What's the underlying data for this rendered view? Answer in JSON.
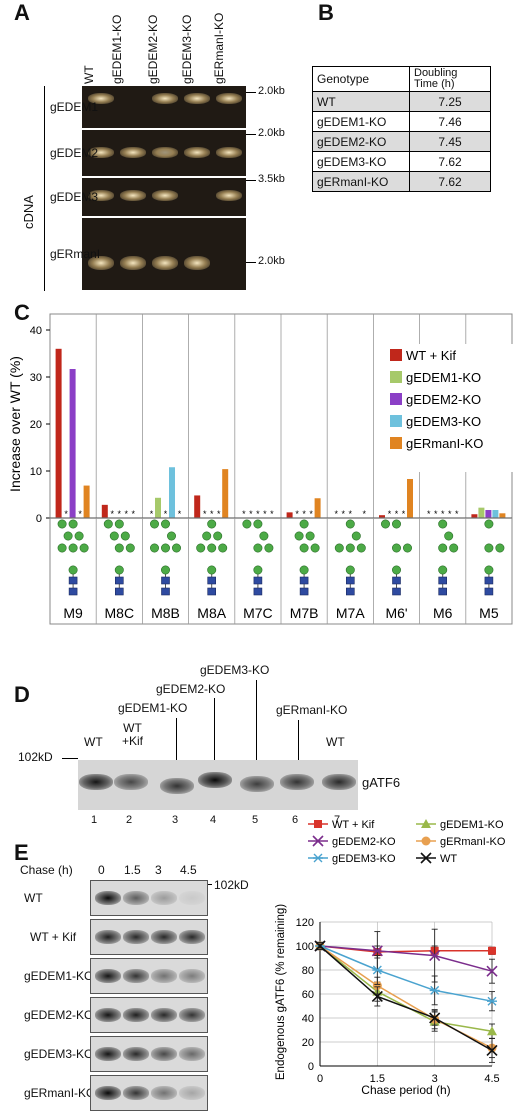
{
  "panelA": {
    "label": "A",
    "lanes": [
      "WT",
      "gEDEM1-KO",
      "gEDEM2-KO",
      "gEDEM3-KO",
      "gERmanI-KO"
    ],
    "side_label": "cDNA",
    "rows": [
      {
        "name": "gEDEM1",
        "marker": "2.0kb"
      },
      {
        "name": "gEDEM2",
        "marker": "2.0kb"
      },
      {
        "name": "gEDEM3",
        "marker": "3.5kb"
      },
      {
        "name": "gERmanI",
        "marker": "2.0kb"
      }
    ]
  },
  "panelB": {
    "label": "B",
    "header_genotype": "Genotype",
    "header_time_line1": "Doubling",
    "header_time_line2": "Time (h)",
    "rows": [
      {
        "genotype": "WT",
        "time": "7.25"
      },
      {
        "genotype": "gEDEM1-KO",
        "time": "7.46"
      },
      {
        "genotype": "gEDEM2-KO",
        "time": "7.45"
      },
      {
        "genotype": "gEDEM3-KO",
        "time": "7.62"
      },
      {
        "genotype": "gERmanI-KO",
        "time": "7.62"
      }
    ]
  },
  "panelC": {
    "label": "C",
    "star": "*",
    "colors": {
      "WT + Kif": "#c0271b",
      "gEDEM1-KO": "#a6c96a",
      "gEDEM2-KO": "#8b3fc6",
      "gEDEM3-KO": "#6ec1dd",
      "gERmanI-KO": "#e08421"
    }
  },
  "panelD": {
    "label": "D",
    "marker": "102kD",
    "band_label": "gATF6",
    "lane_top_labels": [
      "WT",
      "WT\n+Kif",
      "gEDEM1-KO",
      "gEDEM2-KO",
      "gEDEM3-KO",
      "gERmanI-KO",
      "WT"
    ],
    "lane_numbers": [
      "1",
      "2",
      "3",
      "4",
      "5",
      "6",
      "7"
    ]
  },
  "panelE": {
    "label": "E",
    "chase_label": "Chase (h)",
    "timepoints": [
      "0",
      "1.5",
      "3",
      "4.5"
    ],
    "marker": "102kD",
    "rows": [
      "WT",
      "WT + Kif",
      "gEDEM1-KO",
      "gEDEM2-KO",
      "gEDEM3-KO",
      "gERmanI-KO"
    ]
  },
  "chart_data": [
    {
      "type": "bar",
      "ylabel": "Increase over WT (%)",
      "ylim": [
        0,
        40
      ],
      "yticks": [
        0,
        10,
        20,
        30,
        40
      ],
      "categories": [
        "M9",
        "M8C",
        "M8B",
        "M8A",
        "M7C",
        "M7B",
        "M7A",
        "M6'",
        "M6",
        "M5"
      ],
      "legend_position": "top-right",
      "grid": "vertical",
      "series": [
        {
          "name": "WT + Kif",
          "color": "#c0271b",
          "values": [
            36,
            2.8,
            0,
            4.8,
            0,
            1.2,
            0,
            0.6,
            0,
            0.8
          ]
        },
        {
          "name": "gEDEM1-KO",
          "color": "#a6c96a",
          "values": [
            0,
            0,
            4.3,
            0,
            0,
            0,
            0,
            0,
            0,
            2.2
          ]
        },
        {
          "name": "gEDEM2-KO",
          "color": "#8b3fc6",
          "values": [
            31.7,
            0,
            0,
            0,
            0,
            0,
            0,
            0,
            0,
            1.7
          ]
        },
        {
          "name": "gEDEM3-KO",
          "color": "#6ec1dd",
          "values": [
            0,
            0,
            10.8,
            0,
            0,
            0,
            0,
            0,
            0,
            1.7
          ]
        },
        {
          "name": "gERmanI-KO",
          "color": "#e08421",
          "values": [
            6.9,
            0,
            0,
            10.4,
            0,
            4.2,
            0,
            8.3,
            0,
            1.0
          ]
        }
      ],
      "stars": [
        [
          0,
          1,
          0,
          1,
          0
        ],
        [
          0,
          1,
          1,
          1,
          1
        ],
        [
          1,
          0,
          1,
          0,
          1
        ],
        [
          0,
          1,
          1,
          1,
          0
        ],
        [
          1,
          1,
          1,
          1,
          1
        ],
        [
          0,
          1,
          1,
          1,
          0
        ],
        [
          1,
          1,
          1,
          0,
          1
        ],
        [
          0,
          1,
          1,
          1,
          0
        ],
        [
          1,
          1,
          1,
          1,
          1
        ],
        [
          0,
          0,
          0,
          0,
          0
        ]
      ]
    },
    {
      "type": "line",
      "xlabel": "Chase period (h)",
      "ylabel": "Endogenous gATF6 (% remaining)",
      "x": [
        0,
        1.5,
        3,
        4.5
      ],
      "xticks": [
        "0",
        "1.5",
        "3",
        "4.5"
      ],
      "ylim": [
        0,
        120
      ],
      "yticks": [
        0,
        20,
        40,
        60,
        80,
        100,
        120
      ],
      "grid": true,
      "legend_position": "top",
      "series": [
        {
          "name": "WT + Kif",
          "color": "#d9342b",
          "marker": "square",
          "values": [
            100,
            95,
            96,
            96
          ],
          "err": [
            3,
            5,
            4,
            3
          ]
        },
        {
          "name": "gEDEM1-KO",
          "color": "#9ab84a",
          "marker": "triangle",
          "values": [
            100,
            62,
            37,
            29
          ],
          "err": [
            3,
            8,
            8,
            6
          ]
        },
        {
          "name": "gEDEM2-KO",
          "color": "#7b2d8c",
          "marker": "x",
          "values": [
            100,
            96,
            92,
            79
          ],
          "err": [
            3,
            16,
            22,
            10
          ]
        },
        {
          "name": "gERmanI-KO",
          "color": "#e8a050",
          "marker": "circle",
          "values": [
            100,
            67,
            39,
            15
          ],
          "err": [
            3,
            7,
            8,
            8
          ]
        },
        {
          "name": "gEDEM3-KO",
          "color": "#4aa3cf",
          "marker": "star",
          "values": [
            100,
            80,
            63,
            54
          ],
          "err": [
            3,
            12,
            12,
            8
          ]
        },
        {
          "name": "WT",
          "color": "#111111",
          "marker": "x",
          "values": [
            100,
            58,
            40,
            13
          ],
          "err": [
            3,
            8,
            6,
            10
          ]
        }
      ]
    }
  ]
}
